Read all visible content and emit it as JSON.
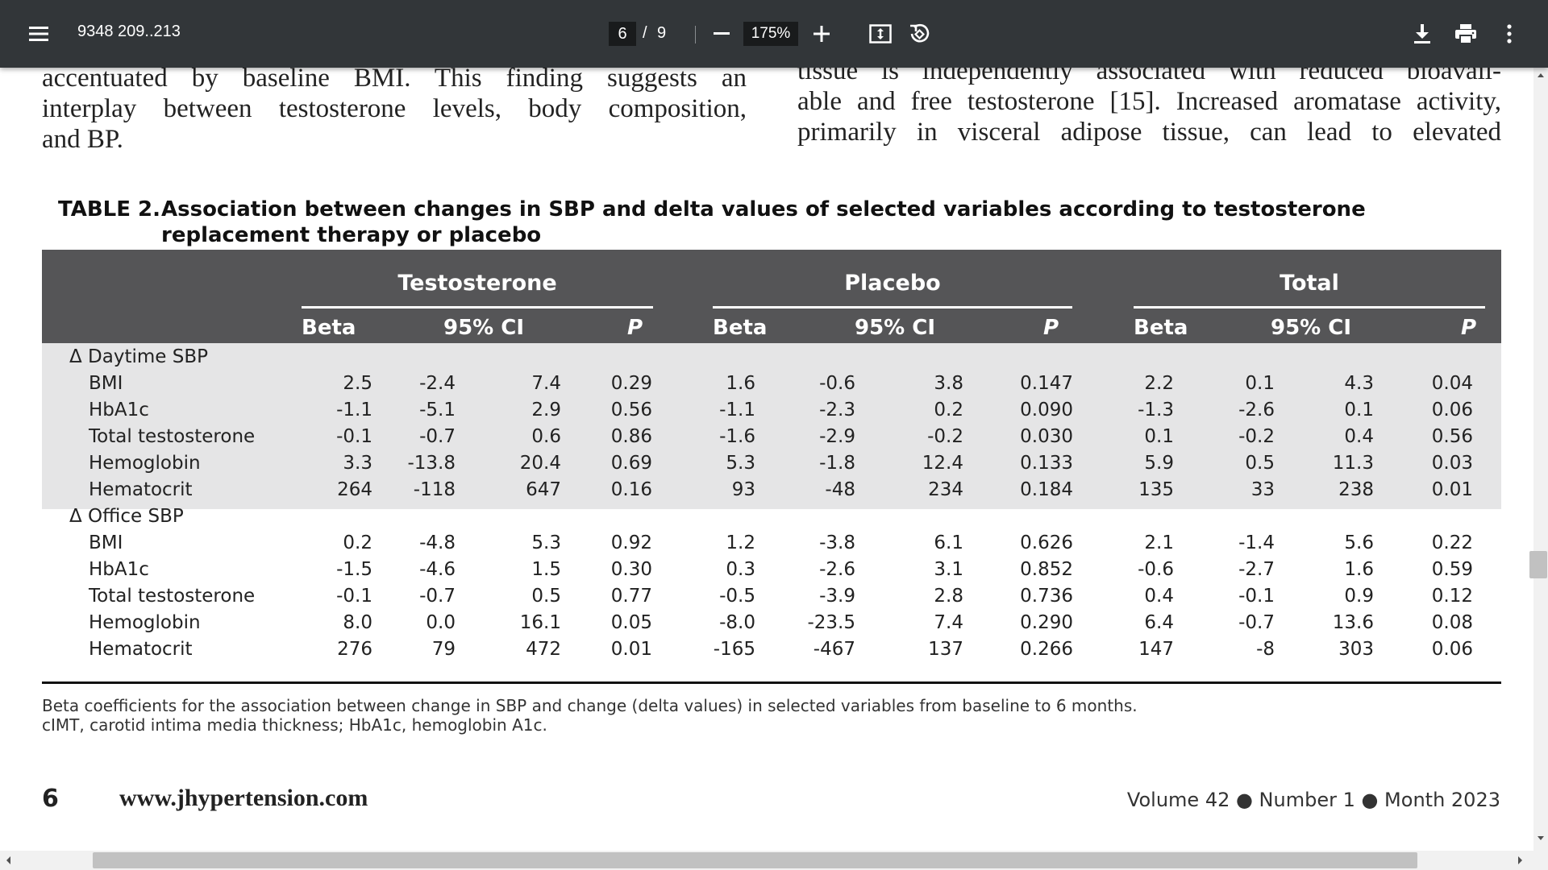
{
  "toolbar": {
    "title": "9348 209..213",
    "page_current": "6",
    "page_sep": "/",
    "page_total": "9",
    "zoom": "175%"
  },
  "icons": {
    "menu": "menu-icon",
    "zoom_out": "minus-icon",
    "zoom_in": "plus-icon",
    "fit": "fit-page-icon",
    "rotate": "rotate-icon",
    "download": "download-icon",
    "print": "print-icon",
    "more": "more-vert-icon"
  },
  "text": {
    "left_col": [
      "accentuated by baseline BMI. This finding suggests an",
      "interplay between testosterone levels, body composition,",
      "and BP."
    ],
    "right_col": [
      "tissue is independently associated with reduced bioavail-",
      "able and free testosterone [15]. Increased aromatase activity,",
      "primarily in visceral adipose tissue, can lead to elevated"
    ]
  },
  "table": {
    "label": "TABLE 2.",
    "caption": "Association between changes in SBP and delta values of selected variables according to testosterone replacement therapy or placebo",
    "groups": [
      "Testosterone",
      "Placebo",
      "Total"
    ],
    "col_headers": [
      "Beta",
      "95% CI",
      "P"
    ],
    "sections": [
      {
        "label": "Δ Daytime SBP",
        "rows": [
          {
            "var": "BMI",
            "values": [
              "2.5",
              "-2.4",
              "7.4",
              "0.29",
              "1.6",
              "-0.6",
              "3.8",
              "0.147",
              "2.2",
              "0.1",
              "4.3",
              "0.04"
            ]
          },
          {
            "var": "HbA1c",
            "values": [
              "-1.1",
              "-5.1",
              "2.9",
              "0.56",
              "-1.1",
              "-2.3",
              "0.2",
              "0.090",
              "-1.3",
              "-2.6",
              "0.1",
              "0.06"
            ]
          },
          {
            "var": "Total testosterone",
            "values": [
              "-0.1",
              "-0.7",
              "0.6",
              "0.86",
              "-1.6",
              "-2.9",
              "-0.2",
              "0.030",
              "0.1",
              "-0.2",
              "0.4",
              "0.56"
            ]
          },
          {
            "var": "Hemoglobin",
            "values": [
              "3.3",
              "-13.8",
              "20.4",
              "0.69",
              "5.3",
              "-1.8",
              "12.4",
              "0.133",
              "5.9",
              "0.5",
              "11.3",
              "0.03"
            ]
          },
          {
            "var": "Hematocrit",
            "values": [
              "264",
              "-118",
              "647",
              "0.16",
              "93",
              "-48",
              "234",
              "0.184",
              "135",
              "33",
              "238",
              "0.01"
            ]
          }
        ]
      },
      {
        "label": "Δ Office SBP",
        "rows": [
          {
            "var": "BMI",
            "values": [
              "0.2",
              "-4.8",
              "5.3",
              "0.92",
              "1.2",
              "-3.8",
              "6.1",
              "0.626",
              "2.1",
              "-1.4",
              "5.6",
              "0.22"
            ]
          },
          {
            "var": "HbA1c",
            "values": [
              "-1.5",
              "-4.6",
              "1.5",
              "0.30",
              "0.3",
              "-2.6",
              "3.1",
              "0.852",
              "-0.6",
              "-2.7",
              "1.6",
              "0.59"
            ]
          },
          {
            "var": "Total testosterone",
            "values": [
              "-0.1",
              "-0.7",
              "0.5",
              "0.77",
              "-0.5",
              "-3.9",
              "2.8",
              "0.736",
              "0.4",
              "-0.1",
              "0.9",
              "0.12"
            ]
          },
          {
            "var": "Hemoglobin",
            "values": [
              "8.0",
              "0.0",
              "16.1",
              "0.05",
              "-8.0",
              "-23.5",
              "7.4",
              "0.290",
              "6.4",
              "-0.7",
              "13.6",
              "0.08"
            ]
          },
          {
            "var": "Hematocrit",
            "values": [
              "276",
              "79",
              "472",
              "0.01",
              "-165",
              "-467",
              "137",
              "0.266",
              "147",
              "-8",
              "303",
              "0.06"
            ]
          }
        ]
      }
    ],
    "footnotes": [
      "Beta coefficients for the association between change in SBP and change (delta values) in selected variables from baseline to 6 months.",
      "cIMT, carotid intima media thickness; HbA1c, hemoglobin A1c."
    ]
  },
  "footer": {
    "page_number": "6",
    "website": "www.jhypertension.com",
    "volume": "Volume 42 ● Number 1 ● Month 2023"
  }
}
